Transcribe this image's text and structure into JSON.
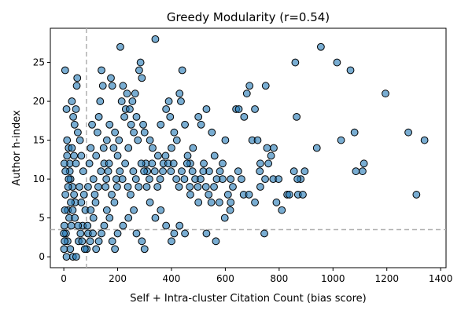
{
  "chart_data": {
    "type": "scatter",
    "title": "Greedy Modularity (r=0.54)",
    "xlabel": "Self + Intra-cluster Citation Count (bias score)",
    "ylabel": "Author h-index",
    "xlim": [
      -50,
      1420
    ],
    "ylim": [
      -1.4,
      29.4
    ],
    "xticks": [
      0,
      200,
      400,
      600,
      800,
      1000,
      1200,
      1400
    ],
    "yticks": [
      0,
      5,
      10,
      15,
      20,
      25
    ],
    "grid": false,
    "legend": "none",
    "colors": {
      "marker_fill": "#1f77b4",
      "marker_edge": "#000000",
      "threshold_line": "#b0b0b0"
    },
    "reference_lines": {
      "x_threshold": 84,
      "y_threshold": 3.5
    },
    "series": [
      {
        "points": [
          [
            5,
            24
          ],
          [
            10,
            19
          ],
          [
            12,
            15
          ],
          [
            18,
            14
          ],
          [
            22,
            12
          ],
          [
            30,
            20
          ],
          [
            35,
            18
          ],
          [
            40,
            17
          ],
          [
            45,
            19
          ],
          [
            48,
            22
          ],
          [
            50,
            23
          ],
          [
            52,
            16
          ],
          [
            60,
            15
          ],
          [
            65,
            13
          ],
          [
            72,
            11
          ],
          [
            25,
            10
          ],
          [
            32,
            9
          ],
          [
            38,
            8
          ],
          [
            42,
            7
          ],
          [
            15,
            6
          ],
          [
            20,
            5
          ],
          [
            28,
            4
          ],
          [
            8,
            3
          ],
          [
            14,
            2
          ],
          [
            24,
            1
          ],
          [
            34,
            0
          ],
          [
            46,
            0
          ],
          [
            10,
            0
          ],
          [
            55,
            2
          ],
          [
            70,
            4
          ],
          [
            80,
            6
          ],
          [
            90,
            9
          ],
          [
            95,
            12
          ],
          [
            100,
            14
          ],
          [
            105,
            17
          ],
          [
            110,
            10
          ],
          [
            115,
            8
          ],
          [
            120,
            13
          ],
          [
            125,
            16
          ],
          [
            130,
            18
          ],
          [
            135,
            20
          ],
          [
            140,
            24
          ],
          [
            145,
            22
          ],
          [
            150,
            12
          ],
          [
            155,
            9
          ],
          [
            160,
            15
          ],
          [
            165,
            11
          ],
          [
            170,
            17
          ],
          [
            175,
            23
          ],
          [
            180,
            22
          ],
          [
            185,
            14
          ],
          [
            190,
            16
          ],
          [
            195,
            10
          ],
          [
            200,
            13
          ],
          [
            205,
            15
          ],
          [
            210,
            27
          ],
          [
            215,
            20
          ],
          [
            220,
            22
          ],
          [
            225,
            18
          ],
          [
            230,
            19
          ],
          [
            235,
            21
          ],
          [
            240,
            14
          ],
          [
            245,
            19
          ],
          [
            250,
            17
          ],
          [
            255,
            20
          ],
          [
            260,
            16
          ],
          [
            265,
            21
          ],
          [
            270,
            18
          ],
          [
            275,
            15
          ],
          [
            280,
            24
          ],
          [
            285,
            25
          ],
          [
            290,
            23
          ],
          [
            295,
            17
          ],
          [
            300,
            16
          ],
          [
            305,
            12
          ],
          [
            310,
            11
          ],
          [
            320,
            15
          ],
          [
            330,
            14
          ],
          [
            340,
            28
          ],
          [
            350,
            13
          ],
          [
            360,
            17
          ],
          [
            370,
            12
          ],
          [
            380,
            19
          ],
          [
            390,
            20
          ],
          [
            395,
            18
          ],
          [
            400,
            14
          ],
          [
            410,
            16
          ],
          [
            420,
            15
          ],
          [
            430,
            21
          ],
          [
            435,
            20
          ],
          [
            440,
            24
          ],
          [
            450,
            17
          ],
          [
            460,
            13
          ],
          [
            470,
            12
          ],
          [
            480,
            14
          ],
          [
            500,
            18
          ],
          [
            510,
            17
          ],
          [
            520,
            12
          ],
          [
            530,
            19
          ],
          [
            540,
            11
          ],
          [
            550,
            16
          ],
          [
            560,
            13
          ],
          [
            580,
            11
          ],
          [
            590,
            12
          ],
          [
            600,
            15
          ],
          [
            610,
            8
          ],
          [
            620,
            7
          ],
          [
            640,
            19
          ],
          [
            650,
            19
          ],
          [
            660,
            10
          ],
          [
            670,
            18
          ],
          [
            680,
            21
          ],
          [
            690,
            22
          ],
          [
            700,
            15
          ],
          [
            710,
            19
          ],
          [
            720,
            15
          ],
          [
            730,
            12
          ],
          [
            750,
            22
          ],
          [
            755,
            14
          ],
          [
            760,
            12
          ],
          [
            770,
            13
          ],
          [
            780,
            14
          ],
          [
            790,
            7
          ],
          [
            810,
            6
          ],
          [
            830,
            8
          ],
          [
            860,
            25
          ],
          [
            865,
            18
          ],
          [
            870,
            8
          ],
          [
            880,
            10
          ],
          [
            895,
            11
          ],
          [
            940,
            14
          ],
          [
            955,
            27
          ],
          [
            1015,
            25
          ],
          [
            1030,
            15
          ],
          [
            1065,
            24
          ],
          [
            1080,
            16
          ],
          [
            1085,
            11
          ],
          [
            1110,
            11
          ],
          [
            1115,
            12
          ],
          [
            1195,
            21
          ],
          [
            1280,
            16
          ],
          [
            1310,
            8
          ],
          [
            1340,
            15
          ],
          [
            745,
            3
          ],
          [
            855,
            11
          ],
          [
            730,
            9
          ],
          [
            710,
            7
          ],
          [
            620,
            10
          ],
          [
            590,
            10
          ],
          [
            565,
            2
          ],
          [
            530,
            3
          ],
          [
            500,
            7
          ],
          [
            470,
            8
          ],
          [
            450,
            3
          ],
          [
            430,
            4
          ],
          [
            410,
            3
          ],
          [
            400,
            2
          ],
          [
            380,
            4
          ],
          [
            360,
            6
          ],
          [
            340,
            5
          ],
          [
            320,
            7
          ],
          [
            300,
            1
          ],
          [
            290,
            2
          ],
          [
            270,
            3
          ],
          [
            260,
            6
          ],
          [
            240,
            5
          ],
          [
            220,
            4
          ],
          [
            200,
            3
          ],
          [
            190,
            1
          ],
          [
            180,
            2
          ],
          [
            170,
            5
          ],
          [
            160,
            6
          ],
          [
            150,
            4
          ],
          [
            140,
            3
          ],
          [
            130,
            2
          ],
          [
            120,
            1
          ],
          [
            110,
            5
          ],
          [
            100,
            6
          ],
          [
            90,
            3
          ],
          [
            85,
            1
          ],
          [
            75,
            8
          ],
          [
            65,
            7
          ],
          [
            58,
            9
          ],
          [
            45,
            12
          ],
          [
            38,
            13
          ],
          [
            30,
            14
          ],
          [
            22,
            11
          ],
          [
            16,
            9
          ],
          [
            6,
            8
          ],
          [
            4,
            6
          ],
          [
            2,
            4
          ],
          [
            3,
            2
          ],
          [
            1,
            1
          ],
          [
            0,
            3
          ],
          [
            2,
            12
          ],
          [
            6,
            11
          ],
          [
            12,
            13
          ],
          [
            18,
            10
          ],
          [
            26,
            7
          ],
          [
            33,
            6
          ],
          [
            41,
            5
          ],
          [
            53,
            4
          ],
          [
            62,
            3
          ],
          [
            68,
            2
          ],
          [
            78,
            1
          ],
          [
            88,
            4
          ],
          [
            98,
            2
          ],
          [
            108,
            3
          ],
          [
            118,
            7
          ],
          [
            128,
            9
          ],
          [
            138,
            11
          ],
          [
            148,
            14
          ],
          [
            158,
            10
          ],
          [
            168,
            12
          ],
          [
            178,
            8
          ],
          [
            188,
            7
          ],
          [
            198,
            9
          ],
          [
            208,
            11
          ],
          [
            218,
            10
          ],
          [
            228,
            12
          ],
          [
            238,
            9
          ],
          [
            248,
            8
          ],
          [
            258,
            11
          ],
          [
            268,
            10
          ],
          [
            278,
            9
          ],
          [
            288,
            12
          ],
          [
            298,
            11
          ],
          [
            308,
            9
          ],
          [
            318,
            10
          ],
          [
            328,
            12
          ],
          [
            338,
            11
          ],
          [
            348,
            9
          ],
          [
            358,
            10
          ],
          [
            368,
            11
          ],
          [
            378,
            13
          ],
          [
            388,
            12
          ],
          [
            398,
            11
          ],
          [
            408,
            12
          ],
          [
            418,
            10
          ],
          [
            428,
            9
          ],
          [
            438,
            11
          ],
          [
            448,
            10
          ],
          [
            458,
            12
          ],
          [
            468,
            9
          ],
          [
            478,
            11
          ],
          [
            488,
            10
          ],
          [
            498,
            9
          ],
          [
            508,
            10
          ],
          [
            518,
            11
          ],
          [
            528,
            9
          ],
          [
            538,
            8
          ],
          [
            548,
            7
          ],
          [
            558,
            9
          ],
          [
            568,
            10
          ],
          [
            578,
            7
          ],
          [
            598,
            5
          ],
          [
            618,
            6
          ],
          [
            628,
            9
          ],
          [
            648,
            11
          ],
          [
            668,
            8
          ],
          [
            688,
            8
          ],
          [
            728,
            11
          ],
          [
            748,
            10
          ],
          [
            778,
            10
          ],
          [
            798,
            10
          ],
          [
            838,
            8
          ],
          [
            868,
            10
          ],
          [
            888,
            8
          ]
        ]
      }
    ]
  }
}
